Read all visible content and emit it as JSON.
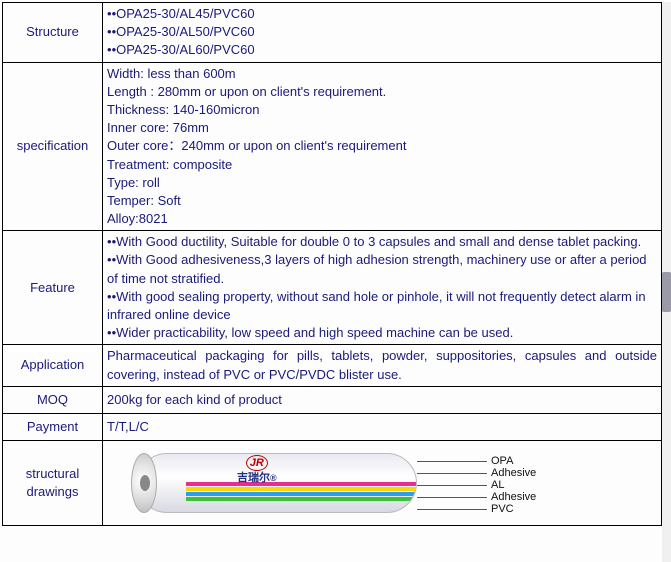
{
  "rows": {
    "structure": {
      "label": "Structure",
      "items": [
        "OPA25-30/AL45/PVC60",
        "OPA25-30/AL50/PVC60",
        "OPA25-30/AL60/PVC60"
      ]
    },
    "specification": {
      "label": "specification",
      "lines": [
        "Width: less than 600m",
        "Length : 280mm or upon on client's requirement.",
        "Thickness: 140-160micron",
        "Inner core: 76mm",
        "Outer core：240mm or upon on client's requirement",
        "Treatment: composite",
        "Type: roll",
        "Temper: Soft",
        "Alloy:8021"
      ]
    },
    "feature": {
      "label": "Feature",
      "items": [
        "With Good ductility, Suitable for double 0 to 3 capsules and small and dense tablet packing.",
        "With Good adhesiveness,3 layers of high adhesion strength, machinery use or after a period of time not stratified.",
        "With good sealing property, without sand hole or pinhole, it will not frequently detect alarm in infrared online device",
        "Wider practicability, low speed and high speed machine can be used."
      ]
    },
    "application": {
      "label": "Application",
      "text": "Pharmaceutical packaging for pills, tablets, powder, suppositories, capsules and outside covering, instead of PVC or PVC/PVDC blister use."
    },
    "moq": {
      "label": "MOQ",
      "text": "200kg for each kind of product"
    },
    "payment": {
      "label": "Payment",
      "text": "T/T,L/C"
    },
    "drawings": {
      "label": "structural drawings",
      "layers": [
        "OPA",
        "Adhesive",
        "AL",
        "Adhesive",
        "PVC"
      ],
      "logo_text": "吉瑞尔",
      "logo_mark": "JR"
    }
  },
  "colors": {
    "text": "#1a1a7a",
    "border": "#000000",
    "bands": [
      "#e62e8b",
      "#ffd400",
      "#2a9df4",
      "#3cc13c"
    ]
  }
}
